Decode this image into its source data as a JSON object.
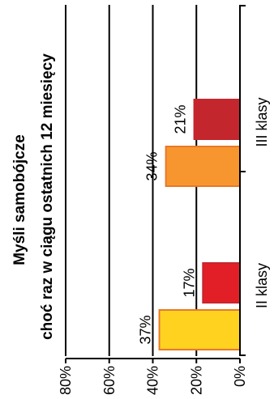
{
  "chart_data": {
    "type": "bar",
    "orientation": "horizontal",
    "title": "Myśli samobójcze",
    "subtitle": "choć raz w ciągu ostatnich 12 miesięcy",
    "categories": [
      "II klasy",
      "III klasy"
    ],
    "series": [
      {
        "values": [
          37,
          34
        ],
        "colors": [
          "#ffd21f",
          "#f7962e"
        ],
        "stroke": "#e8782a"
      },
      {
        "values": [
          17,
          21
        ],
        "colors": [
          "#e21f26",
          "#c4262e"
        ],
        "stroke": "#c4262e"
      }
    ],
    "value_labels": [
      [
        "37%",
        "34%"
      ],
      [
        "17%",
        "21%"
      ]
    ],
    "ticks": [
      0,
      20,
      40,
      60,
      80
    ],
    "tick_labels": [
      "0%",
      "20%",
      "40%",
      "60%",
      "80%"
    ],
    "xlim": [
      0,
      80
    ],
    "grid": true
  }
}
